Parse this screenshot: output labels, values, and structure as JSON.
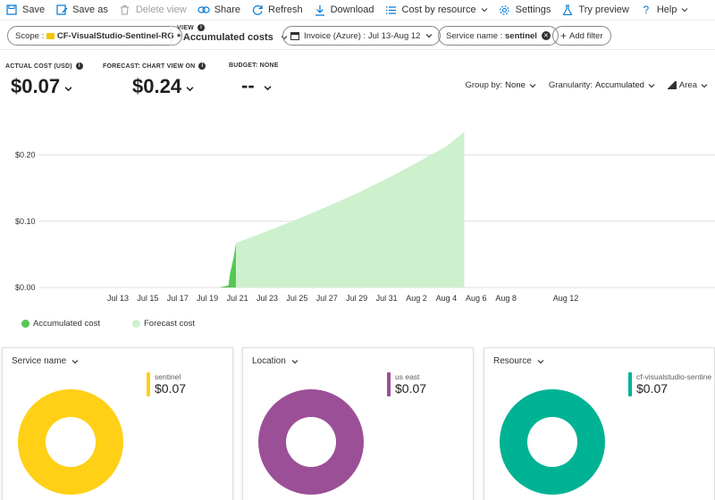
{
  "toolbar": {
    "save": "Save",
    "save_as": "Save as",
    "delete_view": "Delete view",
    "share": "Share",
    "refresh": "Refresh",
    "download": "Download",
    "cost_by_resource": "Cost by resource",
    "settings": "Settings",
    "try_preview": "Try preview",
    "help": "Help"
  },
  "filters": {
    "scope_label": "Scope :",
    "scope_value": "CF-VisualStudio-Sentinel-RG",
    "view_label": "VIEW",
    "view_value": "* Accumulated costs",
    "invoice_label": "Invoice (Azure) :",
    "invoice_value": "Jul 13-Aug 12",
    "service_label": "Service name :",
    "service_value": "sentinel",
    "add_filter": "Add filter"
  },
  "kpis": {
    "actual_label": "ACTUAL COST (USD)",
    "actual_value": "$0.07",
    "forecast_label": "FORECAST: CHART VIEW ON",
    "forecast_value": "$0.24",
    "budget_label": "BUDGET: NONE",
    "budget_value": "--"
  },
  "chart_controls": {
    "group_by_label": "Group by:",
    "group_by_value": "None",
    "granularity_label": "Granularity:",
    "granularity_value": "Accumulated",
    "chart_type": "Area"
  },
  "colors": {
    "actual": "#54c754",
    "forecast": "#cdf0cd",
    "yellow": "#ffd016",
    "purple": "#9b4f96",
    "teal": "#00b294"
  },
  "chart_data": {
    "type": "area",
    "ylim": [
      0,
      0.25
    ],
    "y_ticks": [
      {
        "value": 0,
        "label": "$0.00"
      },
      {
        "value": 0.1,
        "label": "$0.10"
      },
      {
        "value": 0.2,
        "label": "$0.20"
      }
    ],
    "x_ticks": [
      {
        "day": 0,
        "label": "Jul 13"
      },
      {
        "day": 2,
        "label": "Jul 15"
      },
      {
        "day": 4,
        "label": "Jul 17"
      },
      {
        "day": 6,
        "label": "Jul 19"
      },
      {
        "day": 8,
        "label": "Jul 21"
      },
      {
        "day": 10,
        "label": "Jul 23"
      },
      {
        "day": 12,
        "label": "Jul 25"
      },
      {
        "day": 14,
        "label": "Jul 27"
      },
      {
        "day": 16,
        "label": "Jul 29"
      },
      {
        "day": 18,
        "label": "Jul 31"
      },
      {
        "day": 20,
        "label": "Aug 2"
      },
      {
        "day": 22,
        "label": "Aug 4"
      },
      {
        "day": 24,
        "label": "Aug 6"
      },
      {
        "day": 26,
        "label": "Aug 8"
      },
      {
        "day": 30,
        "label": "Aug 12"
      }
    ],
    "series": [
      {
        "name": "Accumulated cost",
        "points": [
          [
            6.0,
            0.0
          ],
          [
            6.8,
            0.0
          ],
          [
            7.4,
            0.003
          ],
          [
            7.5,
            0.02
          ],
          [
            7.75,
            0.045
          ],
          [
            7.9,
            0.067
          ]
        ]
      },
      {
        "name": "Forecast cost",
        "points": [
          [
            7.9,
            0.067
          ],
          [
            10.0,
            0.085
          ],
          [
            12.0,
            0.103
          ],
          [
            14.0,
            0.122
          ],
          [
            16.0,
            0.142
          ],
          [
            18.0,
            0.164
          ],
          [
            20.0,
            0.188
          ],
          [
            22.0,
            0.213
          ],
          [
            23.2,
            0.235
          ]
        ]
      }
    ]
  },
  "cards": [
    {
      "title": "Service name",
      "item": "sentinel",
      "value": "$0.07"
    },
    {
      "title": "Location",
      "item": "us east",
      "value": "$0.07"
    },
    {
      "title": "Resource",
      "item": "cf-visualstudio-sentinel",
      "value": "$0.07"
    }
  ]
}
